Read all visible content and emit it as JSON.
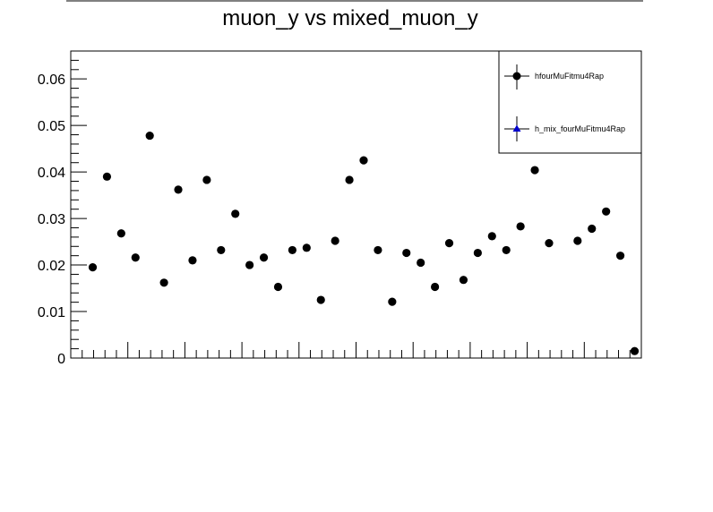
{
  "chart_data": {
    "type": "scatter",
    "title": "muon_y vs mixed_muon_y",
    "xlabel": "",
    "ylabel": "",
    "ylim": [
      0,
      0.066
    ],
    "yticks": [
      "0",
      "0.01",
      "0.02",
      "0.03",
      "0.04",
      "0.05",
      "0.06"
    ],
    "grid": false,
    "legend_position": "top-right",
    "series": [
      {
        "name": "hfourMuFitmu4Rap",
        "marker": "circle",
        "color": "#000000",
        "values": [
          0.0195,
          0.039,
          0.0268,
          0.0216,
          0.0478,
          0.0162,
          0.0362,
          0.021,
          0.0383,
          0.0232,
          0.031,
          0.02,
          0.0216,
          0.0153,
          0.0232,
          0.0237,
          0.0125,
          0.0252,
          0.0383,
          0.0425,
          0.0232,
          0.0121,
          0.0226,
          0.0205,
          0.0153,
          0.0247,
          0.0168,
          0.0226,
          0.0262,
          0.0232,
          0.0283,
          0.0404,
          0.0247,
          null,
          0.0252,
          0.0278,
          0.0315,
          0.022,
          0.0015
        ]
      },
      {
        "name": "h_mix_fourMuFitmu4Rap",
        "marker": "triangle",
        "color": "#0000cc",
        "values": []
      }
    ]
  }
}
